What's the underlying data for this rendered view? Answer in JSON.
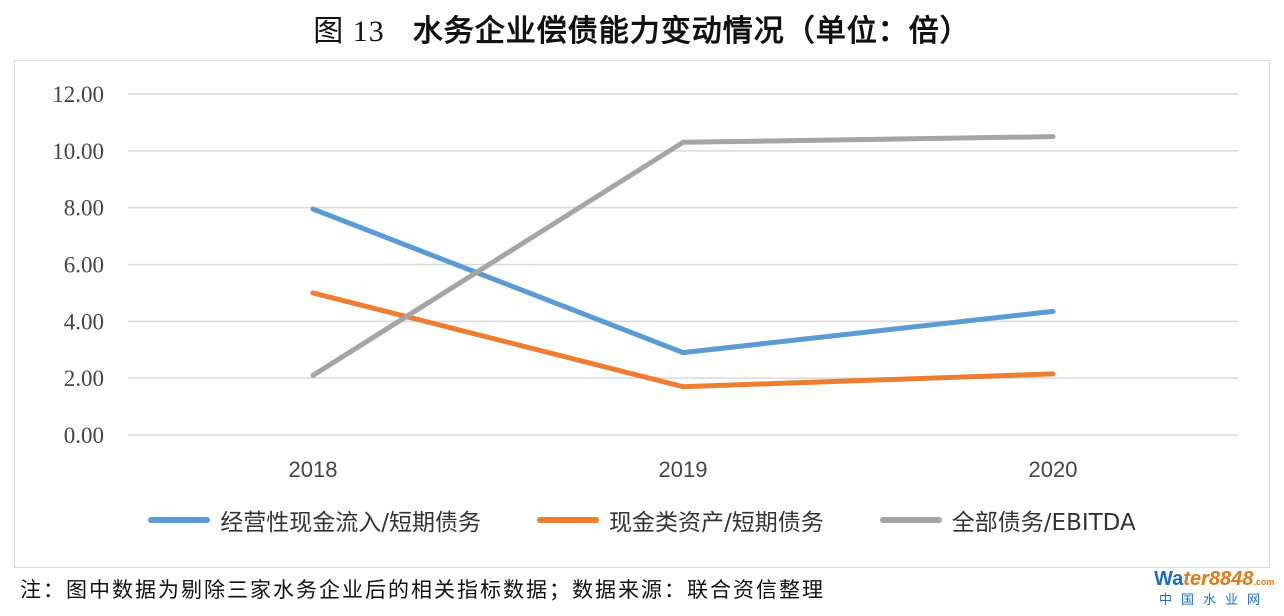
{
  "header": {
    "figure_number": "图 13",
    "title": "水务企业偿债能力变动情况（单位：倍）"
  },
  "chart_data": {
    "type": "line",
    "title": "水务企业偿债能力变动情况（单位：倍）",
    "xlabel": "",
    "ylabel": "",
    "categories": [
      "2018",
      "2019",
      "2020"
    ],
    "ylim": [
      0,
      12
    ],
    "yticks": [
      "0.00",
      "2.00",
      "4.00",
      "6.00",
      "8.00",
      "10.00",
      "12.00"
    ],
    "grid": true,
    "legend_position": "bottom",
    "series": [
      {
        "name": "经营性现金流入/短期债务",
        "values": [
          7.95,
          2.9,
          4.35
        ],
        "color": "#5b9bd5"
      },
      {
        "name": "现金类资产/短期债务",
        "values": [
          5.0,
          1.7,
          2.15
        ],
        "color": "#ed7d31"
      },
      {
        "name": "全部债务/EBITDA",
        "values": [
          2.1,
          10.3,
          10.5
        ],
        "color": "#a5a5a5"
      }
    ]
  },
  "footer": {
    "note": "注：图中数据为剔除三家水务企业后的相关指标数据；数据来源：联合资信整理"
  },
  "watermark": {
    "brand_prefix": "Wa",
    "brand_rest": "ter8848",
    "brand_suffix": ".com",
    "subtitle": "中国水业网"
  }
}
